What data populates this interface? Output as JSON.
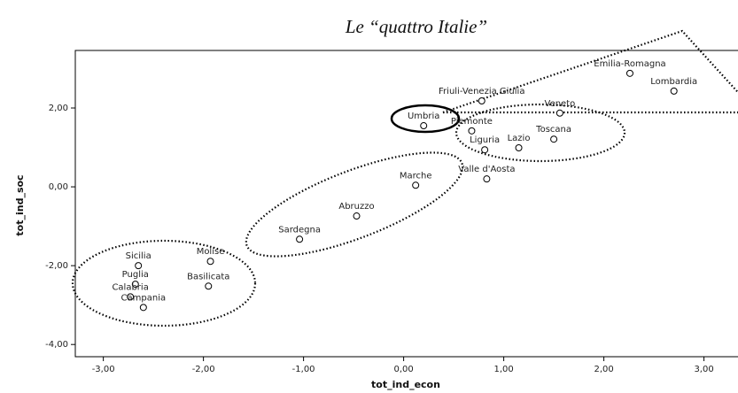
{
  "chart_data": {
    "type": "scatter",
    "title": "Le “quattro Italie”",
    "x_label": "tot_ind_econ",
    "y_label": "tot_ind_soc",
    "xlim": [
      -3.28,
      3.34
    ],
    "ylim": [
      -4.31,
      3.46
    ],
    "xticks": [
      {
        "value": -3,
        "label": "-3,00"
      },
      {
        "value": -2,
        "label": "-2,00"
      },
      {
        "value": -1,
        "label": "-1,00"
      },
      {
        "value": 0,
        "label": "0,00"
      },
      {
        "value": 1,
        "label": "1,00"
      },
      {
        "value": 2,
        "label": "2,00"
      },
      {
        "value": 3,
        "label": "3,00"
      }
    ],
    "yticks": [
      {
        "value": -4,
        "label": "-4,00"
      },
      {
        "value": -2,
        "label": "-2,00"
      },
      {
        "value": 0,
        "label": "0,00"
      },
      {
        "value": 2,
        "label": "2,00"
      }
    ],
    "points": [
      {
        "label": "Emilia-Romagna",
        "x": 2.26,
        "y": 2.88
      },
      {
        "label": "Lombardia",
        "x": 2.7,
        "y": 2.43
      },
      {
        "label": "Friuli-Venezia Giulia",
        "x": 0.78,
        "y": 2.18
      },
      {
        "label": "Veneto",
        "x": 1.56,
        "y": 1.87
      },
      {
        "label": "Umbria",
        "x": 0.2,
        "y": 1.55
      },
      {
        "label": "Piemonte",
        "x": 0.68,
        "y": 1.42
      },
      {
        "label": "Toscana",
        "x": 1.5,
        "y": 1.21
      },
      {
        "label": "Lazio",
        "x": 1.15,
        "y": 0.99
      },
      {
        "label": "Liguria",
        "x": 0.81,
        "y": 0.94
      },
      {
        "label": "Valle d'Aosta",
        "x": 0.83,
        "y": 0.2
      },
      {
        "label": "Marche",
        "x": 0.12,
        "y": 0.04
      },
      {
        "label": "Abruzzo",
        "x": -0.47,
        "y": -0.74
      },
      {
        "label": "Sardegna",
        "x": -1.04,
        "y": -1.33
      },
      {
        "label": "Molise",
        "x": -1.93,
        "y": -1.89
      },
      {
        "label": "Sicilia",
        "x": -2.65,
        "y": -2.0
      },
      {
        "label": "Puglia",
        "x": -2.68,
        "y": -2.47
      },
      {
        "label": "Basilicata",
        "x": -1.95,
        "y": -2.52
      },
      {
        "label": "Calabria",
        "x": -2.73,
        "y": -2.79
      },
      {
        "label": "Campania",
        "x": -2.6,
        "y": -3.06
      }
    ]
  }
}
